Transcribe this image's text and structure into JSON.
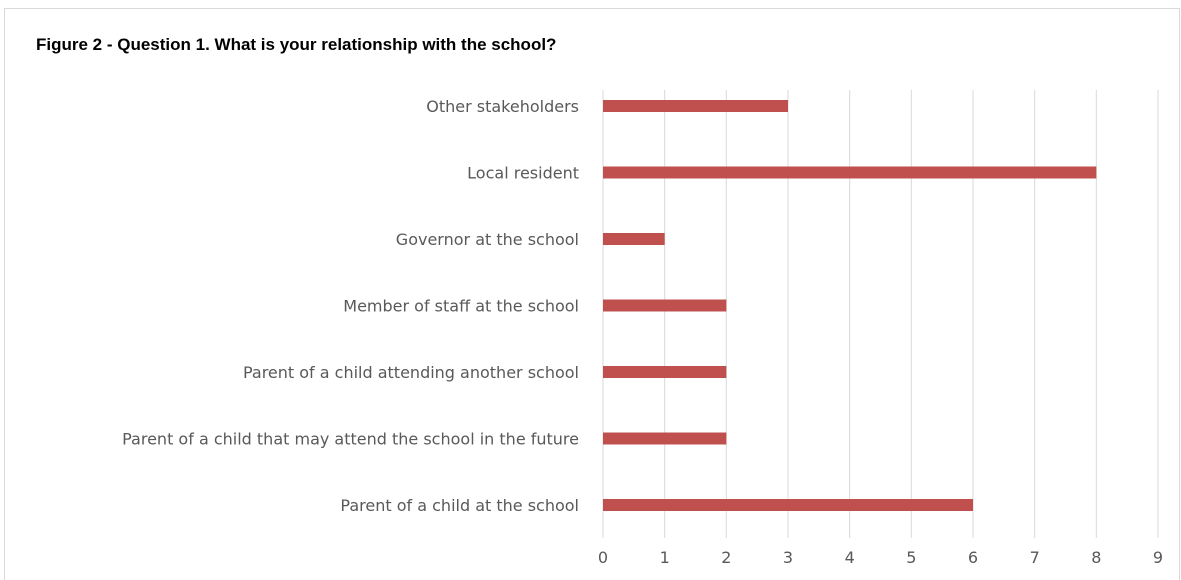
{
  "title": "Figure 2 - Question 1. What is your relationship with the school?",
  "colors": {
    "bar": "#c0504d",
    "grid": "#d9d9d9",
    "text": "#595959"
  },
  "chart_data": {
    "type": "bar",
    "orientation": "horizontal",
    "categories": [
      "Other stakeholders",
      "Local resident",
      "Governor at the school",
      "Member of staff at the  school",
      "Parent of a child attending another school",
      "Parent of a child that may attend the school in the future",
      "Parent of a child at the school"
    ],
    "values": [
      3,
      8,
      1,
      2,
      2,
      2,
      6
    ],
    "xlim": [
      0,
      9
    ],
    "xticks": [
      "0",
      "1",
      "2",
      "3",
      "4",
      "5",
      "6",
      "7",
      "8",
      "9"
    ],
    "grid": true,
    "legend": "none"
  }
}
